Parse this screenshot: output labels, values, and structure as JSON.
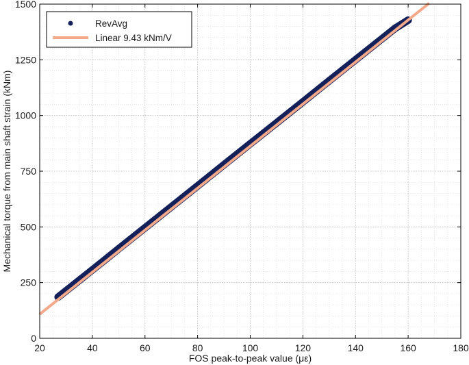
{
  "chart_data": {
    "type": "scatter",
    "title": "",
    "xlabel": "FOS peak-to-peak value (με)",
    "ylabel": "Mechanical torque from main shaft strain (kNm)",
    "xlim": [
      20,
      180
    ],
    "ylim": [
      0,
      1500
    ],
    "xticks": [
      "20",
      "40",
      "60",
      "80",
      "100",
      "120",
      "140",
      "160",
      "180"
    ],
    "yticks": [
      "0",
      "250",
      "500",
      "750",
      "1000",
      "1250",
      "1500"
    ],
    "grid": true,
    "minor_grid": true,
    "legend_position": "top-left",
    "series": [
      {
        "name": "RevAvg",
        "kind": "scatter",
        "color": "#13205a",
        "x": [
          27,
          30,
          35,
          40,
          45,
          50,
          60,
          70,
          80,
          90,
          100,
          110,
          120,
          130,
          140,
          150,
          155,
          160
        ],
        "y": [
          185,
          213,
          260,
          307,
          354,
          402,
          496,
          590,
          684,
          779,
          873,
          967,
          1061,
          1156,
          1250,
          1344,
          1391,
          1428
        ]
      },
      {
        "name": "Linear 9.43 kNm/V",
        "kind": "line",
        "color": "#f4a98a",
        "x": [
          20,
          168
        ],
        "y": [
          108,
          1504
        ]
      }
    ]
  }
}
